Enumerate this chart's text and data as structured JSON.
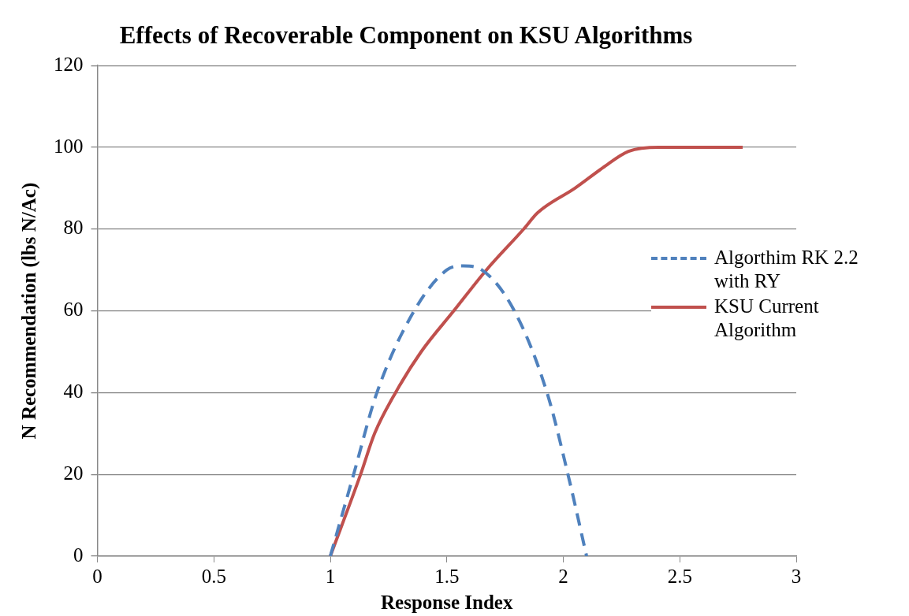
{
  "chart_data": {
    "type": "line",
    "title": "Effects of Recoverable Component on KSU Algorithms",
    "xlabel": "Response Index",
    "ylabel": "N Recommendation (lbs N/Ac)",
    "xlim": [
      0,
      3
    ],
    "xticks": [
      0,
      0.5,
      1,
      1.5,
      2,
      2.5,
      3
    ],
    "ylim": [
      0,
      120
    ],
    "yticks": [
      0,
      20,
      40,
      60,
      80,
      100,
      120
    ],
    "grid": "y",
    "legend": "right",
    "marker": "none",
    "series": [
      {
        "name": "Algorthim RK 2.2 with RY",
        "color": "#4f81bd",
        "line_style": "dashed",
        "x": [
          1,
          1.1,
          1.2,
          1.36,
          1.5,
          1.57,
          1.65,
          1.79,
          1.93,
          2.02,
          2.1
        ],
        "values": [
          0,
          20,
          40,
          60,
          70,
          71,
          70,
          60,
          40,
          20,
          0
        ]
      },
      {
        "name": "KSU Current Algorithm",
        "color": "#c0504d",
        "line_style": "solid",
        "x": [
          1,
          1.13,
          1.19,
          1.28,
          1.39,
          1.53,
          1.67,
          1.83,
          1.89,
          2.05,
          2.17,
          2.28,
          2.41,
          2.77
        ],
        "values": [
          0,
          20,
          30,
          40,
          50,
          60,
          70,
          80,
          84,
          90,
          95,
          99,
          100,
          100
        ]
      }
    ]
  }
}
